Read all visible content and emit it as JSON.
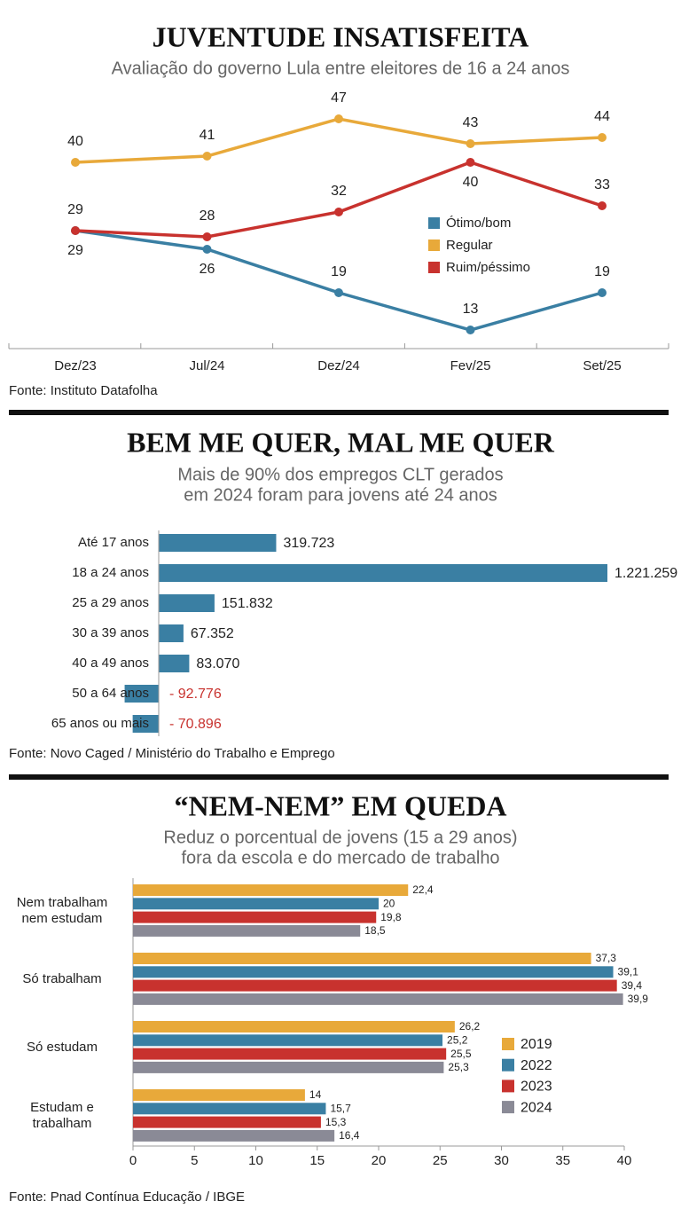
{
  "chart_data": [
    {
      "type": "line",
      "title": "JUVENTUDE INSATISFEITA",
      "subtitle": [
        "Avaliação do governo Lula entre eleitores de 16 a 24 anos"
      ],
      "categories": [
        "Dez/23",
        "Jul/24",
        "Dez/24",
        "Fev/25",
        "Set/25"
      ],
      "series": [
        {
          "name": "Ótimo/bom",
          "color": "#3a7fa3",
          "values": [
            29,
            26,
            19,
            13,
            19
          ]
        },
        {
          "name": "Regular",
          "color": "#e8a93a",
          "values": [
            40,
            41,
            47,
            43,
            44
          ]
        },
        {
          "name": "Ruim/péssimo",
          "color": "#c8322e",
          "values": [
            29,
            28,
            32,
            40,
            33
          ]
        }
      ],
      "legend": "right",
      "source": "Fonte: Instituto Datafolha"
    },
    {
      "type": "bar",
      "orientation": "horizontal",
      "title": "BEM ME QUER, MAL ME QUER",
      "subtitle": [
        "Mais de 90% dos empregos CLT gerados",
        "em 2024 foram para jovens até 24 anos"
      ],
      "categories": [
        "Até 17 anos",
        "18 a 24 anos",
        "25 a 29 anos",
        "30 a 39 anos",
        "40 a 49 anos",
        "50 a 64 anos",
        "65 anos ou mais"
      ],
      "values": [
        319723,
        1221259,
        151832,
        67352,
        83070,
        -92776,
        -70896
      ],
      "value_labels": [
        "319.723",
        "1.221.259",
        "151.832",
        "67.352",
        "83.070",
        "- 92.776",
        "- 70.896"
      ],
      "color": "#3a7fa3",
      "negative_label_color": "#c8322e",
      "source": "Fonte: Novo Caged / Ministério do Trabalho e Emprego"
    },
    {
      "type": "bar",
      "orientation": "horizontal",
      "title": "“NEM-NEM” EM QUEDA",
      "subtitle": [
        "Reduz o porcentual de jovens (15 a 29 anos)",
        "fora da escola e do mercado de trabalho"
      ],
      "categories": [
        "Nem trabalham nem estudam",
        "Só trabalham",
        "Só estudam",
        "Estudam e trabalham"
      ],
      "series": [
        {
          "name": "2019",
          "color": "#e8a93a",
          "values": [
            22.4,
            37.3,
            26.2,
            14
          ],
          "value_labels": [
            "22,4",
            "37,3",
            "26,2",
            "14"
          ]
        },
        {
          "name": "2022",
          "color": "#3a7fa3",
          "values": [
            20,
            39.1,
            25.2,
            15.7
          ],
          "value_labels": [
            "20",
            "39,1",
            "25,2",
            "15,7"
          ]
        },
        {
          "name": "2023",
          "color": "#c8322e",
          "values": [
            19.8,
            39.4,
            25.5,
            15.3
          ],
          "value_labels": [
            "19,8",
            "39,4",
            "25,5",
            "15,3"
          ]
        },
        {
          "name": "2024",
          "color": "#8a8a96",
          "values": [
            18.5,
            39.9,
            25.3,
            16.4
          ],
          "value_labels": [
            "18,5",
            "39,9",
            "25,3",
            "16,4"
          ]
        }
      ],
      "xlim": [
        0,
        40
      ],
      "xticks": [
        0,
        5,
        10,
        15,
        20,
        25,
        30,
        35,
        40
      ],
      "legend": "right",
      "source": "Fonte: Pnad Contínua Educação / IBGE"
    }
  ]
}
